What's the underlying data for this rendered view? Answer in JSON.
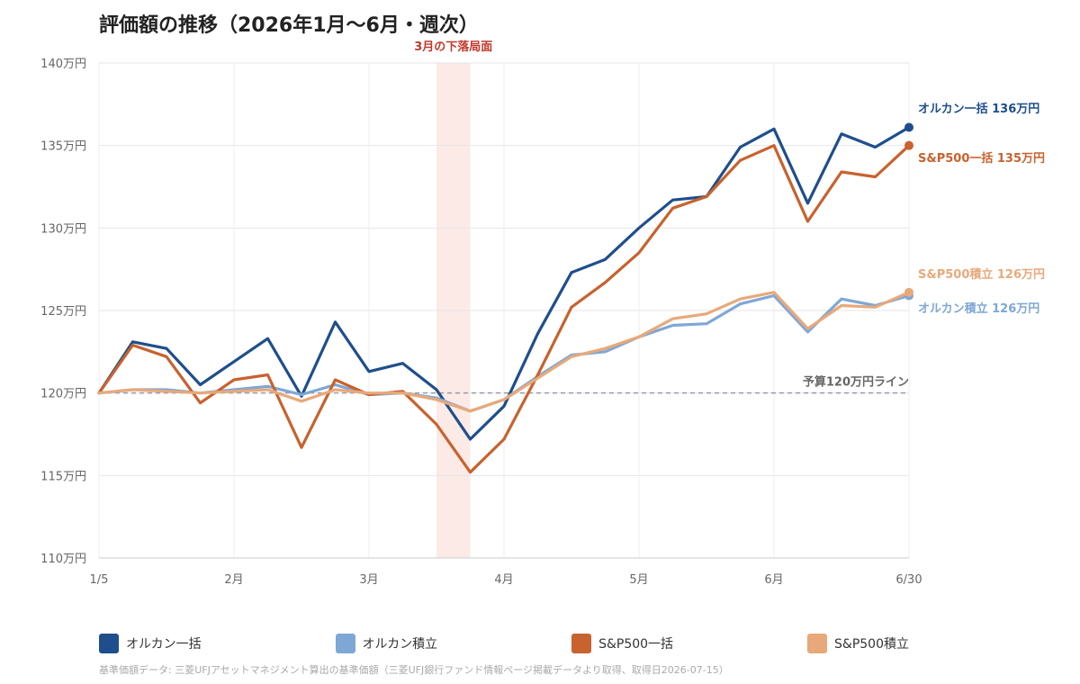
{
  "chart_data": {
    "type": "line",
    "title": "評価額の推移（2026年1月〜6月・週次）",
    "y_unit": "万円",
    "ylim": [
      110,
      140
    ],
    "y_ticks": [
      110,
      115,
      120,
      125,
      130,
      135,
      140
    ],
    "y_tick_labels": [
      "110万円",
      "115万円",
      "120万円",
      "125万円",
      "130万円",
      "135万円",
      "140万円"
    ],
    "x_tick_labels": [
      "1/5",
      "2月",
      "3月",
      "4月",
      "5月",
      "6月",
      "6/30"
    ],
    "x_tick_index": [
      0,
      6,
      12,
      18,
      24,
      30,
      36
    ],
    "grid": true,
    "highlight": {
      "label": "3月の下落局面",
      "from_index": 15,
      "to_index": 16.5,
      "color": "#c0392b"
    },
    "reference_line": {
      "value": 120,
      "label": "予算120万円ライン"
    },
    "series": [
      {
        "name": "オルカン一括",
        "color": "#1f4e8c",
        "end_label": "オルカン一括 136万円",
        "x_index": [
          0,
          1.5,
          3,
          4.5,
          6,
          7.5,
          9,
          10.5,
          12,
          13.5,
          15,
          16.5,
          18,
          19.5,
          21,
          22.5,
          24,
          25.5,
          27,
          28.5,
          30,
          31.5,
          33,
          34.5,
          36
        ],
        "values": [
          120,
          123.1,
          122.7,
          120.5,
          121.9,
          123.3,
          119.8,
          124.3,
          121.3,
          121.8,
          120.2,
          117.2,
          119.2,
          123.6,
          127.3,
          128.1,
          130.0,
          131.7,
          131.9,
          134.9,
          136.0,
          131.5,
          135.7,
          134.9,
          136.1
        ]
      },
      {
        "name": "オルカン積立",
        "color": "#7fa7d6",
        "end_label": "オルカン積立 126万円",
        "x_index": [
          0,
          1.5,
          3,
          4.5,
          6,
          7.5,
          9,
          10.5,
          12,
          13.5,
          15,
          16.5,
          18,
          19.5,
          21,
          22.5,
          24,
          25.5,
          27,
          28.5,
          30,
          31.5,
          33,
          34.5,
          36
        ],
        "values": [
          120,
          120.2,
          120.2,
          120.0,
          120.2,
          120.4,
          119.9,
          120.5,
          119.9,
          120.0,
          119.7,
          118.9,
          119.6,
          121.0,
          122.3,
          122.5,
          123.4,
          124.1,
          124.2,
          125.4,
          125.9,
          123.7,
          125.7,
          125.3,
          125.9
        ]
      },
      {
        "name": "S&P500一括",
        "color": "#c8622e",
        "end_label": "S&P500一括 135万円",
        "x_index": [
          0,
          1.5,
          3,
          4.5,
          6,
          7.5,
          9,
          10.5,
          12,
          13.5,
          15,
          16.5,
          18,
          19.5,
          21,
          22.5,
          24,
          25.5,
          27,
          28.5,
          30,
          31.5,
          33,
          34.5,
          36
        ],
        "values": [
          120,
          122.9,
          122.2,
          119.4,
          120.8,
          121.1,
          116.7,
          120.8,
          119.9,
          120.1,
          118.1,
          115.2,
          117.2,
          121.1,
          125.2,
          126.7,
          128.5,
          131.2,
          131.9,
          134.1,
          135.0,
          130.4,
          133.4,
          133.1,
          135.0
        ]
      },
      {
        "name": "S&P500積立",
        "color": "#e8a97a",
        "end_label": "S&P500積立 126万円",
        "x_index": [
          0,
          1.5,
          3,
          4.5,
          6,
          7.5,
          9,
          10.5,
          12,
          13.5,
          15,
          16.5,
          18,
          19.5,
          21,
          22.5,
          24,
          25.5,
          27,
          28.5,
          30,
          31.5,
          33,
          34.5,
          36
        ],
        "values": [
          120,
          120.2,
          120.1,
          120.0,
          120.1,
          120.2,
          119.5,
          120.2,
          120.0,
          120.0,
          119.6,
          118.9,
          119.6,
          120.9,
          122.2,
          122.7,
          123.4,
          124.5,
          124.8,
          125.7,
          126.1,
          123.9,
          125.3,
          125.2,
          126.1
        ]
      }
    ]
  },
  "legend": [
    {
      "label": "オルカン一括",
      "color": "#1f4e8c"
    },
    {
      "label": "オルカン積立",
      "color": "#7fa7d6"
    },
    {
      "label": "S&P500一括",
      "color": "#c8622e"
    },
    {
      "label": "S&P500積立",
      "color": "#e8a97a"
    }
  ],
  "source_note": "基準価額データ: 三菱UFJアセットマネジメント算出の基準価額（三菱UFJ銀行ファンド情報ページ掲載データより取得、取得日2026-07-15）"
}
